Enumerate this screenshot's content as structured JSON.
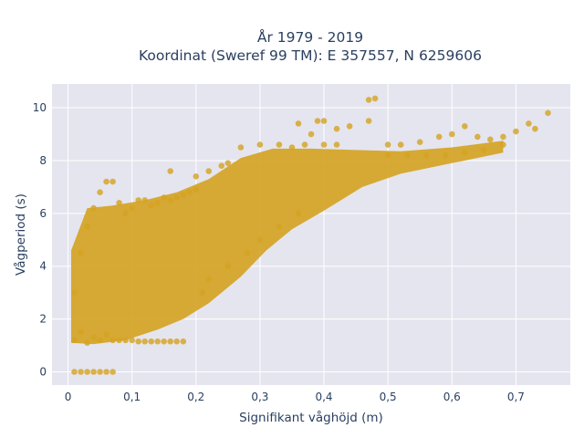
{
  "chart_data": {
    "type": "scatter",
    "title_line1": "År 1979 - 2019",
    "title_line2": "Koordinat (Sweref 99 TM): E 357557, N 6259606",
    "xlabel": "Signifikant våghöjd (m)",
    "ylabel": "Vågperiod (s)",
    "xlim": [
      -0.025,
      0.785
    ],
    "ylim": [
      -0.5,
      10.9
    ],
    "x_ticks": [
      0,
      0.1,
      0.2,
      0.3,
      0.4,
      0.5,
      0.6,
      0.7
    ],
    "x_tick_labels": [
      "0",
      "0,1",
      "0,2",
      "0,3",
      "0,4",
      "0,5",
      "0,6",
      "0,7"
    ],
    "y_ticks": [
      0,
      2,
      4,
      6,
      8,
      10
    ],
    "y_tick_labels": [
      "0",
      "2",
      "4",
      "6",
      "8",
      "10"
    ],
    "grid": true,
    "background_color": "#e5e5ef",
    "marker_color": "#d4a220",
    "series": [
      {
        "points": [
          [
            0.01,
            0.0
          ],
          [
            0.02,
            0.0
          ],
          [
            0.03,
            0.0
          ],
          [
            0.04,
            0.0
          ],
          [
            0.05,
            0.0
          ],
          [
            0.06,
            0.0
          ],
          [
            0.07,
            0.0
          ],
          [
            0.01,
            1.2
          ],
          [
            0.02,
            1.5
          ],
          [
            0.03,
            1.1
          ],
          [
            0.04,
            1.3
          ],
          [
            0.05,
            1.2
          ],
          [
            0.06,
            1.4
          ],
          [
            0.07,
            1.2
          ],
          [
            0.08,
            1.2
          ],
          [
            0.09,
            1.2
          ],
          [
            0.1,
            1.2
          ],
          [
            0.11,
            1.15
          ],
          [
            0.12,
            1.15
          ],
          [
            0.13,
            1.15
          ],
          [
            0.14,
            1.15
          ],
          [
            0.15,
            1.15
          ],
          [
            0.16,
            1.15
          ],
          [
            0.17,
            1.15
          ],
          [
            0.18,
            1.15
          ],
          [
            0.01,
            3.0
          ],
          [
            0.02,
            4.5
          ],
          [
            0.03,
            5.5
          ],
          [
            0.04,
            6.2
          ],
          [
            0.05,
            6.8
          ],
          [
            0.06,
            7.2
          ],
          [
            0.07,
            7.2
          ],
          [
            0.08,
            6.4
          ],
          [
            0.09,
            6.0
          ],
          [
            0.1,
            6.2
          ],
          [
            0.11,
            6.5
          ],
          [
            0.12,
            6.5
          ],
          [
            0.13,
            6.3
          ],
          [
            0.14,
            6.4
          ],
          [
            0.15,
            6.6
          ],
          [
            0.16,
            6.5
          ],
          [
            0.17,
            6.6
          ],
          [
            0.18,
            6.7
          ],
          [
            0.19,
            6.8
          ],
          [
            0.2,
            6.9
          ],
          [
            0.16,
            7.6
          ],
          [
            0.2,
            7.4
          ],
          [
            0.22,
            7.6
          ],
          [
            0.24,
            7.8
          ],
          [
            0.25,
            7.9
          ],
          [
            0.21,
            3.0
          ],
          [
            0.22,
            3.5
          ],
          [
            0.25,
            4.0
          ],
          [
            0.28,
            4.5
          ],
          [
            0.3,
            5.0
          ],
          [
            0.33,
            5.5
          ],
          [
            0.36,
            6.0
          ],
          [
            0.27,
            8.5
          ],
          [
            0.3,
            8.6
          ],
          [
            0.33,
            8.6
          ],
          [
            0.35,
            8.5
          ],
          [
            0.37,
            8.6
          ],
          [
            0.4,
            8.6
          ],
          [
            0.42,
            8.6
          ],
          [
            0.36,
            9.4
          ],
          [
            0.39,
            9.5
          ],
          [
            0.4,
            9.5
          ],
          [
            0.38,
            9.0
          ],
          [
            0.42,
            9.2
          ],
          [
            0.44,
            9.3
          ],
          [
            0.47,
            9.5
          ],
          [
            0.47,
            10.3
          ],
          [
            0.48,
            10.35
          ],
          [
            0.5,
            8.6
          ],
          [
            0.52,
            8.6
          ],
          [
            0.55,
            8.7
          ],
          [
            0.58,
            8.9
          ],
          [
            0.6,
            9.0
          ],
          [
            0.62,
            9.3
          ],
          [
            0.64,
            8.9
          ],
          [
            0.66,
            8.8
          ],
          [
            0.68,
            8.9
          ],
          [
            0.7,
            9.1
          ],
          [
            0.72,
            9.4
          ],
          [
            0.73,
            9.2
          ],
          [
            0.75,
            9.8
          ],
          [
            0.5,
            8.2
          ],
          [
            0.53,
            8.2
          ],
          [
            0.56,
            8.2
          ],
          [
            0.59,
            8.2
          ],
          [
            0.62,
            8.3
          ],
          [
            0.65,
            8.4
          ],
          [
            0.68,
            8.6
          ]
        ]
      }
    ]
  }
}
